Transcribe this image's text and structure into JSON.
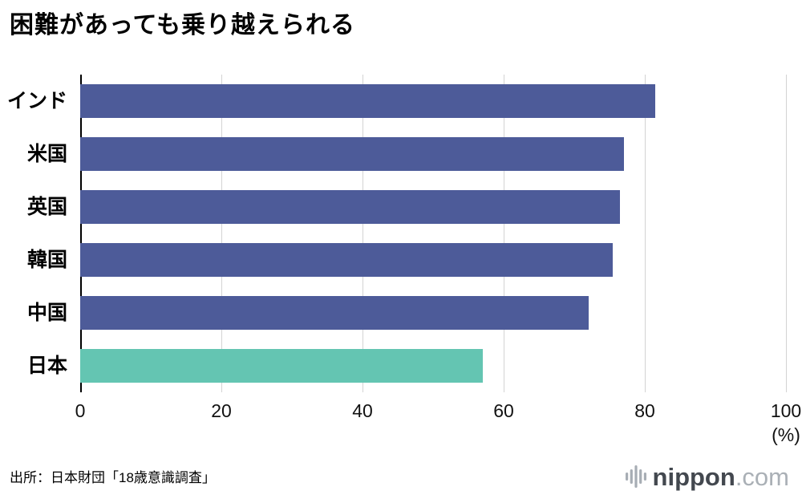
{
  "title": "困難があっても乗り越えられる",
  "chart_data": {
    "type": "bar",
    "orientation": "horizontal",
    "title": "困難があっても乗り越えられる",
    "categories": [
      "インド",
      "米国",
      "英国",
      "韓国",
      "中国",
      "日本"
    ],
    "values": [
      81.5,
      77.0,
      76.5,
      75.5,
      72.0,
      57.0
    ],
    "xlim": [
      0,
      100
    ],
    "xticks": [
      0,
      20,
      40,
      60,
      80,
      100
    ],
    "unit_label": "(%)",
    "grid": true,
    "bar_color": "#4d5b99",
    "highlight_index": 5,
    "highlight_color": "#64c5b2",
    "gridline_color": "#d3d3d3"
  },
  "source": "出所：日本財団「18歳意識調査」",
  "logo": {
    "name": "nippon",
    "suffix": ".com"
  }
}
